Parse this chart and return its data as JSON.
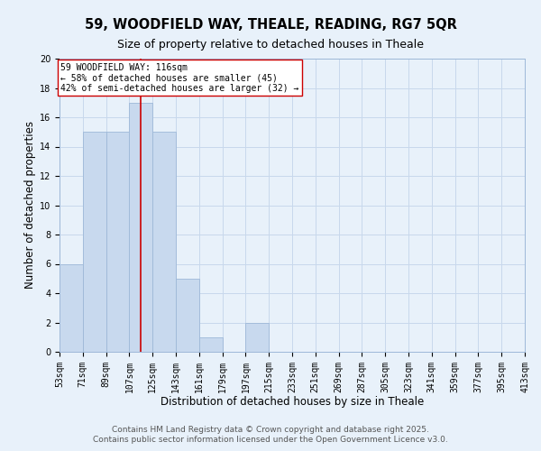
{
  "title": "59, WOODFIELD WAY, THEALE, READING, RG7 5QR",
  "subtitle": "Size of property relative to detached houses in Theale",
  "xlabel": "Distribution of detached houses by size in Theale",
  "ylabel": "Number of detached properties",
  "bin_edges": [
    53,
    71,
    89,
    107,
    125,
    143,
    161,
    179,
    197,
    215,
    233,
    251,
    269,
    287,
    305,
    323,
    341,
    359,
    377,
    395,
    413
  ],
  "bar_heights": [
    6,
    15,
    15,
    17,
    15,
    5,
    1,
    0,
    2,
    0,
    0,
    0,
    0,
    0,
    0,
    0,
    0,
    0,
    0,
    0
  ],
  "bar_color": "#c8d9ee",
  "bar_edgecolor": "#9db8d8",
  "grid_color": "#c8d8ec",
  "background_color": "#e8f1fa",
  "property_line_x": 116,
  "property_line_color": "#cc0000",
  "ylim": [
    0,
    20
  ],
  "yticks": [
    0,
    2,
    4,
    6,
    8,
    10,
    12,
    14,
    16,
    18,
    20
  ],
  "annotation_text": "59 WOODFIELD WAY: 116sqm\n← 58% of detached houses are smaller (45)\n42% of semi-detached houses are larger (32) →",
  "annotation_bbox_edgecolor": "#cc0000",
  "annotation_bbox_facecolor": "#ffffff",
  "footer_line1": "Contains HM Land Registry data © Crown copyright and database right 2025.",
  "footer_line2": "Contains public sector information licensed under the Open Government Licence v3.0.",
  "title_fontsize": 10.5,
  "subtitle_fontsize": 9,
  "tick_fontsize": 7,
  "label_fontsize": 8.5,
  "annotation_fontsize": 7,
  "footer_fontsize": 6.5
}
